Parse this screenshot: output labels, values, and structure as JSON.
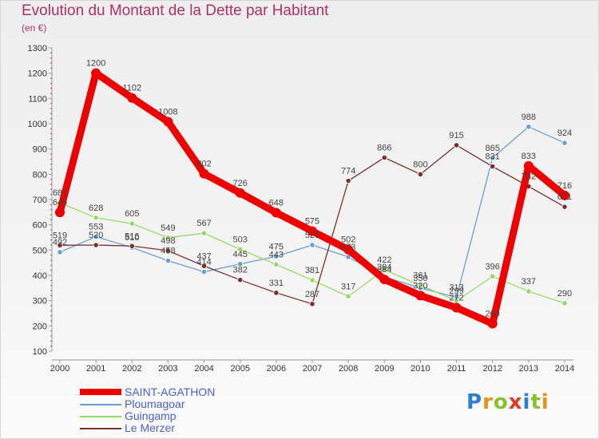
{
  "title": "Evolution du Montant de la Dette par Habitant",
  "subtitle": "(en €)",
  "brand": {
    "text": "Proxiti",
    "letter_colors": [
      "#2a7fd0",
      "#e8901c",
      "#8cbf2a",
      "#d93a2a",
      "#2a7fd0",
      "#8cbf2a",
      "#e8901c"
    ]
  },
  "chart_data": {
    "type": "line",
    "title": "Evolution du Montant de la Dette par Habitant",
    "ylabel": "(en €)",
    "xlabel": "",
    "x": [
      "2000",
      "2001",
      "2002",
      "2003",
      "2004",
      "2005",
      "2006",
      "2007",
      "2008",
      "2009",
      "2010",
      "2011",
      "2012",
      "2013",
      "2014"
    ],
    "ylim": [
      100,
      1300
    ],
    "yticks": [
      100,
      200,
      300,
      400,
      500,
      600,
      700,
      800,
      900,
      1000,
      1100,
      1200,
      1300
    ],
    "grid": false,
    "legend_position": "bottom-left",
    "series": [
      {
        "name": "SAINT-AGATHON",
        "color": "#ee0000",
        "thick": true,
        "values": [
          649,
          1200,
          1102,
          1008,
          802,
          726,
          648,
          575,
          502,
          384,
          320,
          272,
          209,
          833,
          716
        ]
      },
      {
        "name": "Ploumagoar",
        "color": "#6a9fd0",
        "thick": false,
        "values": [
          492,
          553,
          510,
          458,
          414,
          445,
          475,
          520,
          473,
          394,
          350,
          313,
          865,
          988,
          924
        ]
      },
      {
        "name": "Guingamp",
        "color": "#98d868",
        "thick": false,
        "values": [
          687,
          628,
          605,
          549,
          567,
          503,
          443,
          381,
          317,
          422,
          361,
          299,
          396,
          337,
          290
        ]
      },
      {
        "name": "Le Merzer",
        "color": "#7a3030",
        "thick": false,
        "values": [
          519,
          520,
          516,
          498,
          437,
          382,
          331,
          287,
          774,
          866,
          800,
          915,
          831,
          752,
          671
        ]
      }
    ]
  }
}
